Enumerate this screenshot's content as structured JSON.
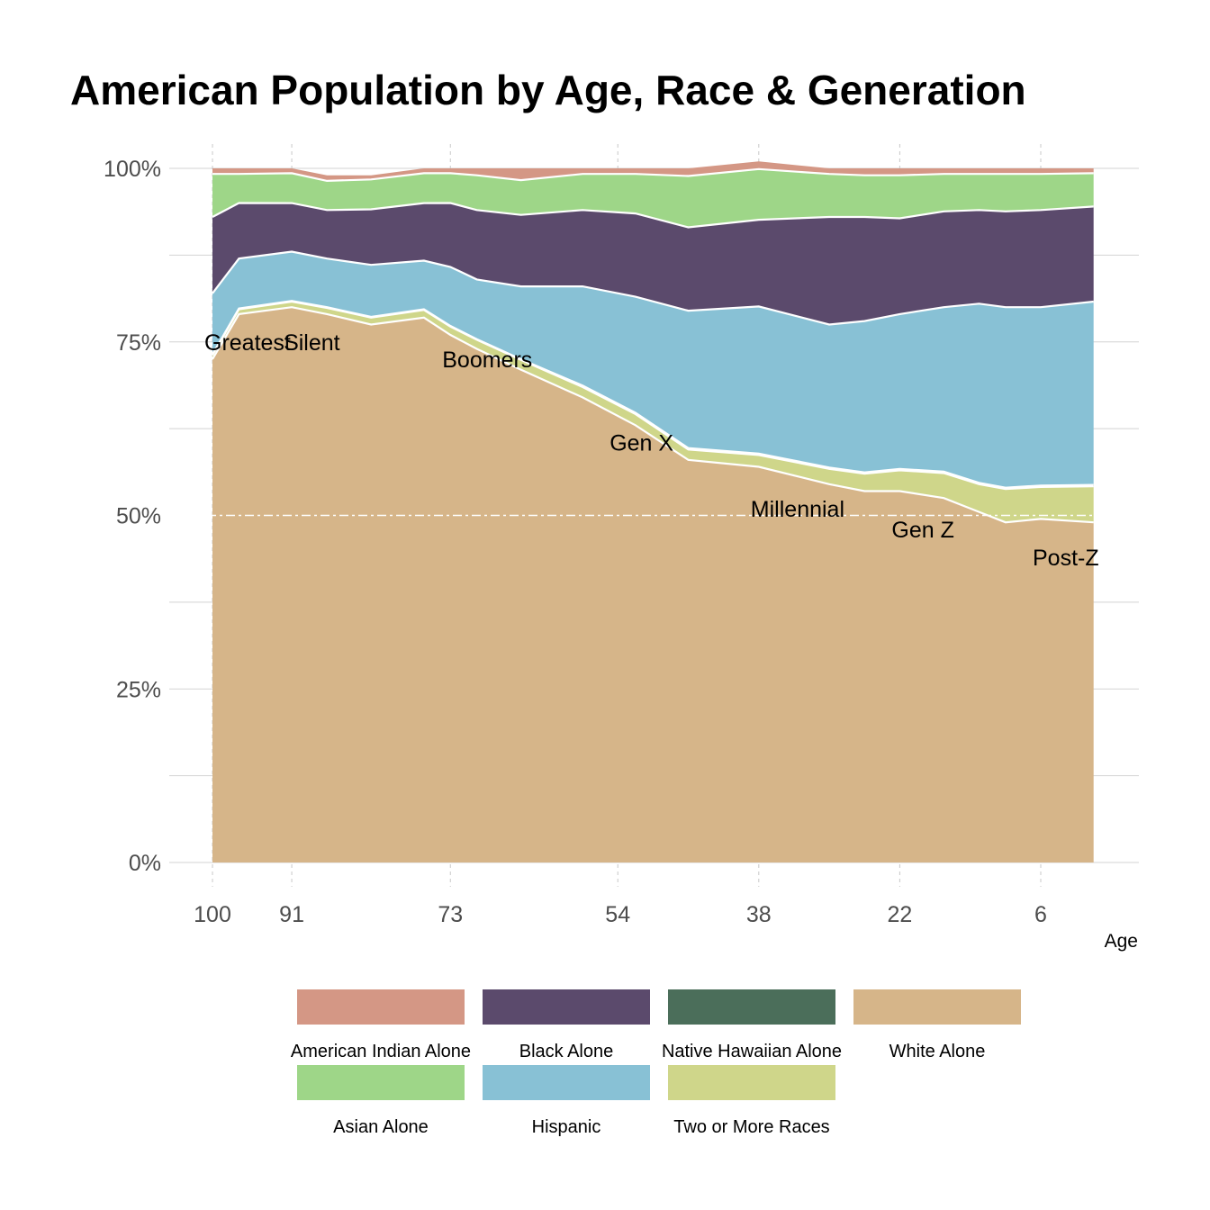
{
  "chart_data": {
    "type": "area",
    "stacked": "percent",
    "title": "American Population by Age, Race & Generation",
    "xlabel": "Age",
    "ylabel": "",
    "x_reversed": true,
    "xlim": [
      100,
      -6
    ],
    "ylim": [
      0,
      100
    ],
    "x_ticks": [
      100,
      91,
      73,
      54,
      38,
      22,
      6
    ],
    "x_tick_labels": [
      "100",
      "91",
      "73",
      "54",
      "38",
      "22",
      "6"
    ],
    "y_ticks": [
      0,
      25,
      50,
      75,
      100
    ],
    "y_tick_labels": [
      "0%",
      "25%",
      "50%",
      "75%",
      "100%"
    ],
    "reference_line": {
      "y": 50,
      "style": "dashed"
    },
    "x": [
      100,
      97,
      91,
      87,
      82,
      76,
      73,
      70,
      65,
      58,
      52,
      46,
      38,
      30,
      26,
      22,
      17,
      13,
      10,
      6,
      0
    ],
    "series": [
      {
        "name": "White Alone",
        "color": "#d6b589",
        "values": [
          72.5,
          79,
          80,
          79,
          77.5,
          78.5,
          76,
          74,
          71,
          67,
          63,
          58,
          57,
          54.5,
          53.5,
          53.5,
          52.5,
          50.5,
          49,
          49.5,
          49
        ]
      },
      {
        "name": "Two or More Races",
        "color": "#cfd68a",
        "values": [
          0.6,
          0.7,
          0.8,
          0.9,
          1.0,
          1.1,
          1.2,
          1.3,
          1.4,
          1.5,
          1.6,
          1.5,
          1.7,
          2.2,
          2.5,
          3.0,
          3.6,
          4.0,
          4.8,
          4.6,
          5.2
        ]
      },
      {
        "name": "Native Hawaiian Alone",
        "color": "#4b6e5a",
        "values": [
          0.1,
          0.1,
          0.1,
          0.1,
          0.1,
          0.1,
          0.1,
          0.1,
          0.1,
          0.2,
          0.2,
          0.2,
          0.2,
          0.2,
          0.2,
          0.2,
          0.2,
          0.2,
          0.2,
          0.2,
          0.2
        ]
      },
      {
        "name": "Hispanic",
        "color": "#88c1d5",
        "values": [
          8.8,
          7.2,
          7.1,
          7.0,
          7.5,
          7.0,
          8.5,
          8.6,
          10.5,
          14.3,
          16.7,
          19.8,
          21.2,
          20.6,
          21.8,
          22.3,
          23.7,
          25.8,
          26.0,
          25.7,
          26.4
        ]
      },
      {
        "name": "Black Alone",
        "color": "#5b4a6c",
        "values": [
          11.0,
          8.0,
          7.0,
          7.0,
          8.0,
          8.3,
          9.2,
          10.0,
          10.3,
          11.0,
          12.0,
          12.0,
          12.5,
          15.5,
          15.0,
          13.8,
          13.8,
          13.5,
          13.8,
          14.0,
          13.7
        ]
      },
      {
        "name": "Asian Alone",
        "color": "#9ed688",
        "values": [
          6.2,
          4.2,
          4.3,
          4.2,
          4.3,
          4.3,
          4.3,
          5.0,
          5.0,
          5.2,
          5.7,
          7.4,
          7.3,
          6.2,
          6.0,
          6.2,
          5.4,
          5.2,
          5.4,
          5.2,
          4.8
        ]
      },
      {
        "name": "American Indian Alone",
        "color": "#d49785",
        "values": [
          0.8,
          0.8,
          0.7,
          0.8,
          0.6,
          0.7,
          0.7,
          1.0,
          1.7,
          0.8,
          0.8,
          1.1,
          1.1,
          0.8,
          1.0,
          1.0,
          0.8,
          0.8,
          0.8,
          0.8,
          0.7
        ]
      }
    ],
    "annotations": [
      {
        "text": "Greatest",
        "x": 100,
        "y": 75
      },
      {
        "text": "Silent",
        "x": 91,
        "y": 75
      },
      {
        "text": "Boomers",
        "x": 73,
        "y": 72.5
      },
      {
        "text": "Gen X",
        "x": 54,
        "y": 60.5
      },
      {
        "text": "Millennial",
        "x": 38,
        "y": 51
      },
      {
        "text": "Gen Z",
        "x": 22,
        "y": 48
      },
      {
        "text": "Post-Z",
        "x": 6,
        "y": 44
      }
    ],
    "legend": {
      "position": "bottom",
      "order": [
        "American Indian Alone",
        "Black Alone",
        "Native Hawaiian Alone",
        "White Alone",
        "Asian Alone",
        "Hispanic",
        "Two or More Races"
      ]
    },
    "grid": true
  }
}
